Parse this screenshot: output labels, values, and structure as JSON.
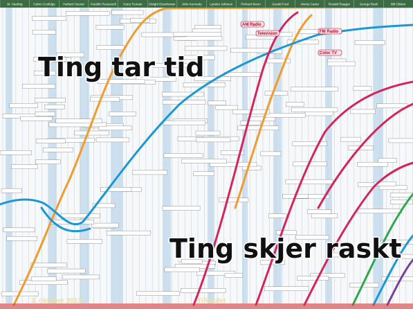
{
  "header": {
    "presidents": [
      "W. Harding",
      "Calvin Coolidge",
      "Herbert Hoover",
      "Franklin Roosevelt",
      "Harry Truman",
      "Dwight Eisenhower",
      "John Kennedy",
      "Lyndon Johnson",
      "Richard Nixon",
      "Gerald Ford",
      "Jimmy Carter",
      "Ronald Reagan",
      "George Bush",
      "Bill Clinton"
    ]
  },
  "labels": [
    "AM Radio",
    "Television",
    "FM Radio",
    "Color TV"
  ],
  "captions": {
    "top": "Ting tar tid",
    "bottom": "Ting skjer raskt"
  },
  "footer": {
    "date": "3. oktober 2013",
    "status": "Tilkoplet"
  }
}
